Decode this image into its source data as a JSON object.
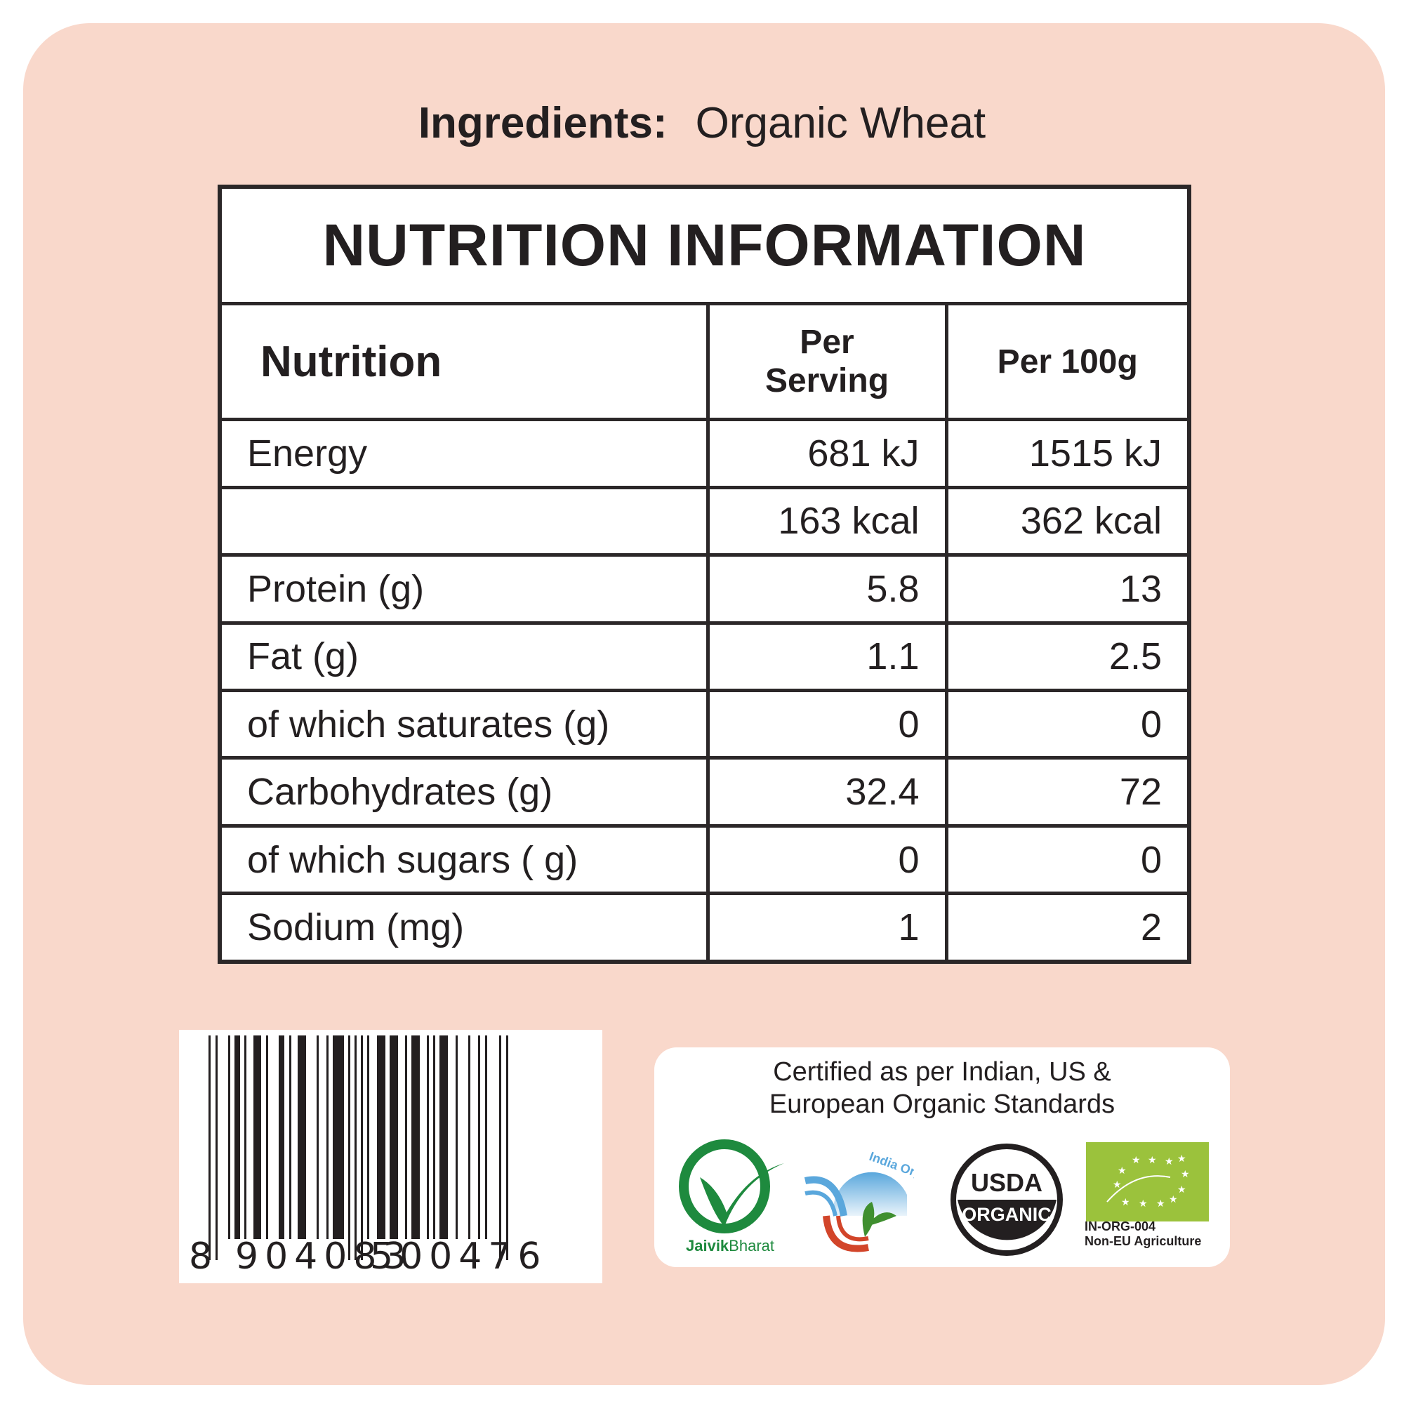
{
  "ingredients": {
    "label": "Ingredients:",
    "value": "Organic Wheat"
  },
  "nutrition": {
    "title": "NUTRITION INFORMATION",
    "headers": [
      "Nutrition",
      "Per Serving",
      "Per 100g"
    ],
    "rows": [
      {
        "name": "Energy",
        "per_serving": "681 kJ",
        "per_100g": "1515 kJ"
      },
      {
        "name": "",
        "per_serving": "163 kcal",
        "per_100g": "362 kcal"
      },
      {
        "name": "Protein (g)",
        "per_serving": "5.8",
        "per_100g": "13"
      },
      {
        "name": "Fat (g)",
        "per_serving": "1.1",
        "per_100g": "2.5"
      },
      {
        "name": "of which saturates (g)",
        "per_serving": "0",
        "per_100g": "0"
      },
      {
        "name": "Carbohydrates (g)",
        "per_serving": "32.4",
        "per_100g": "72"
      },
      {
        "name": "of which sugars ( g)",
        "per_serving": "0",
        "per_100g": "0"
      },
      {
        "name": "Sodium (mg)",
        "per_serving": "1",
        "per_100g": "2"
      }
    ]
  },
  "barcode": {
    "number": "8904083500476",
    "first": "8",
    "left_group": "904083",
    "right_group": "500476"
  },
  "certification": {
    "line1": "Certified as per Indian, US &",
    "line2": "European Organic Standards",
    "logos": {
      "jaivik": {
        "word1": "Jaivik",
        "word2": "Bharat",
        "color": "#1e8a3e"
      },
      "india_organic": {
        "text": "India Organic",
        "colors": [
          "#5aa7dc",
          "#d2452a",
          "#3f8f2f"
        ]
      },
      "usda": {
        "top": "USDA",
        "bottom": "ORGANIC"
      },
      "eu": {
        "code": "IN-ORG-004",
        "origin": "Non-EU Agriculture",
        "color": "#9bc23c"
      }
    }
  },
  "colors": {
    "background": "#f9d8cb",
    "text": "#231f20"
  }
}
